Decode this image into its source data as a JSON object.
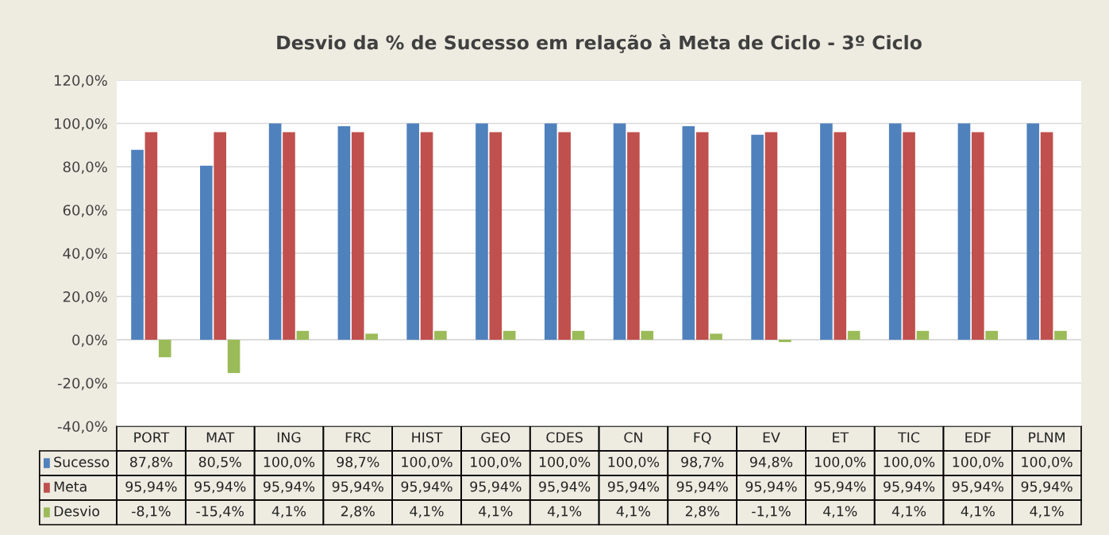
{
  "chart_data": {
    "type": "bar",
    "title": "Desvio da % de Sucesso em relação à Meta de Ciclo - 3º Ciclo",
    "categories": [
      "PORT",
      "MAT",
      "ING",
      "FRC",
      "HIST",
      "GEO",
      "CDES",
      "CN",
      "FQ",
      "EV",
      "ET",
      "TIC",
      "EDF",
      "PLNM"
    ],
    "series": [
      {
        "name": "Sucesso",
        "color": "#4f81bd",
        "values": [
          87.8,
          80.5,
          100,
          98.7,
          100,
          100,
          100,
          100,
          98.7,
          94.8,
          100,
          100,
          100,
          100
        ],
        "value_labels": [
          "87,8%",
          "80,5%",
          "100,0%",
          "98,7%",
          "100,0%",
          "100,0%",
          "100,0%",
          "100,0%",
          "98,7%",
          "94,8%",
          "100,0%",
          "100,0%",
          "100,0%",
          "100,0%"
        ]
      },
      {
        "name": "Meta",
        "color": "#c0504d",
        "values": [
          95.94,
          95.94,
          95.94,
          95.94,
          95.94,
          95.94,
          95.94,
          95.94,
          95.94,
          95.94,
          95.94,
          95.94,
          95.94,
          95.94
        ],
        "value_labels": [
          "95,94%",
          "95,94%",
          "95,94%",
          "95,94%",
          "95,94%",
          "95,94%",
          "95,94%",
          "95,94%",
          "95,94%",
          "95,94%",
          "95,94%",
          "95,94%",
          "95,94%",
          "95,94%"
        ]
      },
      {
        "name": "Desvio",
        "color": "#9bbb59",
        "values": [
          -8.1,
          -15.4,
          4.1,
          2.8,
          4.1,
          4.1,
          4.1,
          4.1,
          2.8,
          -1.1,
          4.1,
          4.1,
          4.1,
          4.1
        ],
        "value_labels": [
          "-8,1%",
          "-15,4%",
          "4,1%",
          "2,8%",
          "4,1%",
          "4,1%",
          "4,1%",
          "4,1%",
          "2,8%",
          "-1,1%",
          "4,1%",
          "4,1%",
          "4,1%",
          "4,1%"
        ]
      }
    ],
    "ylim": [
      -40,
      120
    ],
    "yticks": [
      {
        "value": -40,
        "label": "-40,0%"
      },
      {
        "value": -20,
        "label": "-20,0%"
      },
      {
        "value": 0,
        "label": "0,0%"
      },
      {
        "value": 20,
        "label": "20,0%"
      },
      {
        "value": 40,
        "label": "40,0%"
      },
      {
        "value": 60,
        "label": "60,0%"
      },
      {
        "value": 80,
        "label": "80,0%"
      },
      {
        "value": 100,
        "label": "100,0%"
      },
      {
        "value": 120,
        "label": "120,0%"
      }
    ],
    "grid": "y",
    "legend": "bottom"
  }
}
